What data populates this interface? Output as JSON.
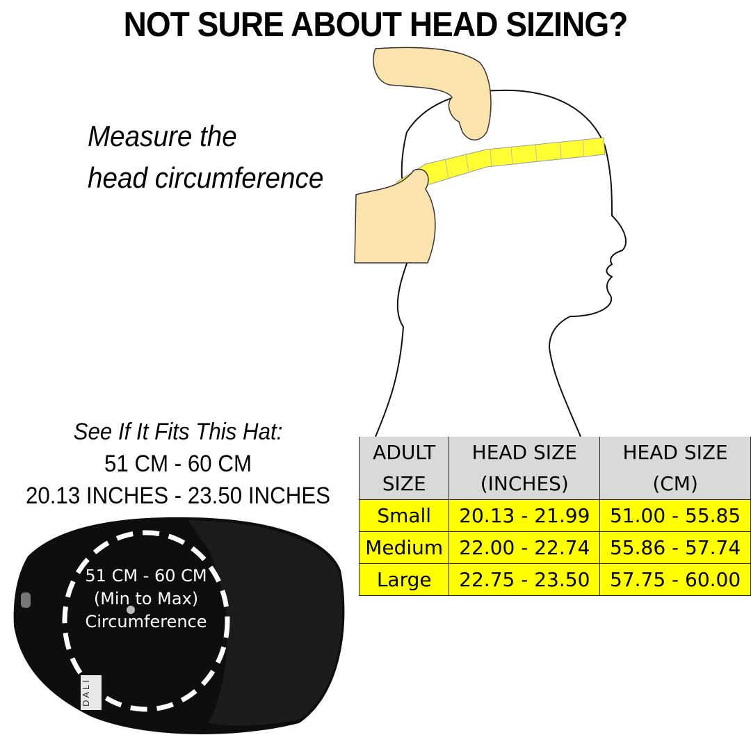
{
  "title": "NOT SURE ABOUT HEAD SIZING?",
  "instruction": {
    "line1": "Measure the",
    "line2": "head circumference"
  },
  "hat_fit": {
    "heading": "See If It Fits This Hat:",
    "cm_range": "51 CM - 60 CM",
    "inch_range": "20.13 INCHES -  23.50 INCHES"
  },
  "hat_label": {
    "line1": "51 CM - 60 CM",
    "line2": "(Min to Max)",
    "line3": "Circumference",
    "brand_tag": "DALI"
  },
  "size_table": {
    "headers": [
      [
        "ADULT",
        "SIZE"
      ],
      [
        "HEAD SIZE",
        "(INCHES)"
      ],
      [
        "HEAD SIZE",
        "(CM)"
      ]
    ],
    "rows": [
      [
        "Small",
        "20.13 - 21.99",
        "51.00 - 55.85"
      ],
      [
        "Medium",
        "22.00 - 22.74",
        "55.86 - 57.74"
      ],
      [
        "Large",
        "22.75 - 23.50",
        "57.75 - 60.00"
      ]
    ]
  },
  "colors": {
    "header_bg": "#d9d9d9",
    "row_bg": "#ffff00",
    "tape": "#ffff33",
    "hand": "#fbe3ae"
  }
}
